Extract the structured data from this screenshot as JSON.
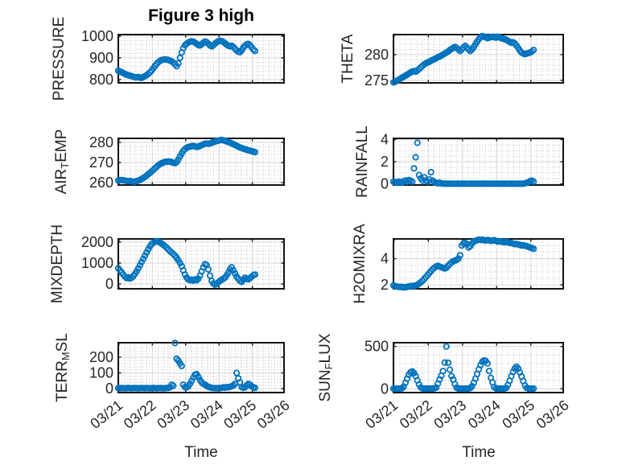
{
  "figure": {
    "title": "Figure 3 high",
    "xlabel": "Time",
    "marker_color": "#0072BD",
    "frame_color": "#141414",
    "grid_color": "#d6d6d6",
    "minor_grid_color": "#bdbdbd",
    "text_color": "#262626",
    "background": "#ffffff"
  },
  "x_axis": {
    "xlim": [
      20.98,
      25.95
    ],
    "x_start": 20.98,
    "x_step": 0.05,
    "tick_days": [
      21,
      22,
      23,
      24,
      25,
      26
    ],
    "tick_labels": [
      "03/21",
      "03/22",
      "03/23",
      "03/24",
      "03/25",
      "03/26"
    ],
    "minor_step_days": 0.1667
  },
  "chart_data": [
    {
      "name": "pressure",
      "type": "scatter",
      "ylabel": "PRESSURE",
      "ylabel_parts": [
        {
          "text": "PRESSURE",
          "sub": false
        }
      ],
      "ylim": [
        785,
        1007
      ],
      "yticks": [
        800,
        900,
        1000
      ],
      "y_minor_step": 20,
      "y": [
        841,
        838,
        834,
        830,
        826,
        822,
        820,
        818,
        816,
        813,
        811,
        810,
        812,
        809,
        808,
        812,
        816,
        820,
        826,
        833,
        841,
        852,
        863,
        872,
        880,
        886,
        890,
        892,
        893,
        892,
        890,
        887,
        884,
        878,
        870,
        862,
        875,
        900,
        925,
        945,
        958,
        965,
        970,
        974,
        976,
        974,
        970,
        964,
        959,
        957,
        962,
        970,
        975,
        972,
        965,
        957,
        953,
        958,
        965,
        972,
        976,
        978,
        977,
        973,
        967,
        961,
        956,
        953,
        956,
        950,
        942,
        934,
        928,
        926,
        935,
        947,
        956,
        962,
        964,
        958,
        948,
        938,
        932
      ]
    },
    {
      "name": "theta",
      "type": "scatter",
      "ylabel": "THETA",
      "ylabel_parts": [
        {
          "text": "THETA",
          "sub": false
        }
      ],
      "ylim": [
        274.5,
        283.9
      ],
      "yticks": [
        275,
        280
      ],
      "y_minor_step": 1,
      "y": [
        274.6,
        274.7,
        274.9,
        275.1,
        275.3,
        275.5,
        275.7,
        275.9,
        276.1,
        276.3,
        276.5,
        276.7,
        276.8,
        276.7,
        276.9,
        277.2,
        277.5,
        277.8,
        278.1,
        278.3,
        278.5,
        278.6,
        278.8,
        279.0,
        279.1,
        279.3,
        279.5,
        279.6,
        279.8,
        280.0,
        280.2,
        280.4,
        280.6,
        280.9,
        281.1,
        281.3,
        281.5,
        281.3,
        281.0,
        280.7,
        281.0,
        281.4,
        281.7,
        281.4,
        281.0,
        280.7,
        281.0,
        281.5,
        282.0,
        282.5,
        283.0,
        283.4,
        283.6,
        283.5,
        283.4,
        283.2,
        283.3,
        283.4,
        283.5,
        283.4,
        283.3,
        283.5,
        283.4,
        283.2,
        283.1,
        283.0,
        282.9,
        282.7,
        282.5,
        282.3,
        282.4,
        282.2,
        281.8,
        281.3,
        280.8,
        280.4,
        280.2,
        280.1,
        280.2,
        280.3,
        280.4,
        280.6,
        280.9
      ]
    },
    {
      "name": "air-temp",
      "type": "scatter",
      "ylabel": "AIR_TEMP",
      "ylabel_parts": [
        {
          "text": "AIR",
          "sub": false
        },
        {
          "text": "T",
          "sub": true
        },
        {
          "text": "EMP",
          "sub": false
        }
      ],
      "ylim": [
        258.8,
        282.0
      ],
      "yticks": [
        260,
        270,
        280
      ],
      "y_minor_step": 2,
      "y": [
        261.0,
        261.2,
        261.3,
        261.2,
        261.0,
        260.8,
        260.7,
        260.9,
        260.6,
        260.4,
        260.5,
        260.8,
        261.0,
        261.3,
        261.8,
        262.3,
        262.9,
        263.5,
        264.2,
        264.9,
        265.6,
        266.3,
        267.1,
        267.9,
        268.6,
        269.2,
        269.7,
        270.0,
        270.3,
        270.4,
        270.5,
        270.4,
        270.2,
        269.9,
        269.7,
        270.2,
        271.5,
        273.0,
        274.5,
        275.8,
        276.7,
        277.3,
        277.7,
        277.9,
        278.1,
        278.2,
        278.0,
        277.8,
        277.9,
        278.2,
        278.6,
        279.0,
        279.3,
        279.4,
        279.3,
        279.5,
        279.8,
        280.1,
        280.4,
        280.7,
        280.9,
        281.1,
        281.2,
        281.0,
        280.8,
        280.5,
        280.2,
        279.9,
        279.5,
        279.1,
        278.7,
        278.3,
        277.9,
        277.5,
        277.2,
        276.9,
        276.6,
        276.3,
        276.1,
        275.9,
        275.7,
        275.4,
        275.1
      ]
    },
    {
      "name": "rainfall",
      "type": "scatter",
      "ylabel": "RAINFALL",
      "ylabel_parts": [
        {
          "text": "RAINFALL",
          "sub": false
        }
      ],
      "ylim": [
        -0.1,
        4.1
      ],
      "yticks": [
        0,
        2,
        4
      ],
      "y_minor_step": 0.5,
      "y": [
        0.2,
        0.15,
        0.1,
        0.2,
        0.15,
        0.1,
        0.25,
        0.3,
        0.2,
        0.35,
        0.3,
        0.2,
        1.4,
        2.4,
        3.7,
        0.8,
        0.5,
        0.3,
        0.6,
        0.3,
        0.2,
        0.4,
        1.05,
        0.3,
        0.15,
        0.1,
        0.05,
        0.1,
        0.05,
        0.03,
        0.02,
        0.02,
        0.02,
        0.02,
        0.02,
        0.02,
        0.02,
        0.02,
        0.02,
        0.02,
        0.02,
        0.02,
        0.02,
        0.02,
        0.02,
        0.02,
        0.02,
        0.02,
        0.02,
        0.02,
        0.02,
        0.02,
        0.02,
        0.02,
        0.02,
        0.02,
        0.02,
        0.02,
        0.02,
        0.02,
        0.02,
        0.02,
        0.02,
        0.02,
        0.02,
        0.02,
        0.02,
        0.02,
        0.02,
        0.02,
        0.02,
        0.02,
        0.02,
        0.02,
        0.02,
        0.02,
        0.02,
        0.05,
        0.1,
        0.15,
        0.25,
        0.3,
        0.2
      ]
    },
    {
      "name": "mixdepth",
      "type": "scatter",
      "ylabel": "MIXDEPTH",
      "ylabel_parts": [
        {
          "text": "MIXDEPTH",
          "sub": false
        }
      ],
      "ylim": [
        -230,
        2150
      ],
      "yticks": [
        0,
        1000,
        2000
      ],
      "y_minor_step": 200,
      "y": [
        750,
        650,
        550,
        450,
        350,
        280,
        320,
        260,
        300,
        380,
        480,
        600,
        750,
        900,
        1050,
        1200,
        1350,
        1500,
        1650,
        1800,
        1900,
        1960,
        2010,
        2040,
        2020,
        1980,
        1930,
        1870,
        1800,
        1730,
        1650,
        1570,
        1500,
        1430,
        1350,
        1250,
        1130,
        1000,
        850,
        650,
        450,
        300,
        220,
        180,
        200,
        160,
        220,
        180,
        250,
        400,
        600,
        800,
        950,
        900,
        700,
        400,
        150,
        20,
        -30,
        0,
        80,
        150,
        200,
        250,
        300,
        420,
        550,
        700,
        800,
        650,
        500,
        350,
        250,
        150,
        100,
        200,
        300,
        250,
        220,
        280,
        350,
        420,
        450
      ]
    },
    {
      "name": "h2omixra",
      "type": "scatter",
      "ylabel": "H2OMIXRA",
      "ylabel_parts": [
        {
          "text": "H2OMIXRA",
          "sub": false
        }
      ],
      "ylim": [
        1.7,
        5.5
      ],
      "yticks": [
        2,
        4
      ],
      "y_minor_step": 0.5,
      "y": [
        1.95,
        1.9,
        1.88,
        1.85,
        1.83,
        1.85,
        1.8,
        1.82,
        1.85,
        1.88,
        1.9,
        1.92,
        1.9,
        1.95,
        2.0,
        2.1,
        2.2,
        2.3,
        2.45,
        2.6,
        2.75,
        2.9,
        3.05,
        3.2,
        3.3,
        3.4,
        3.45,
        3.4,
        3.35,
        3.3,
        3.25,
        3.3,
        3.45,
        3.6,
        3.7,
        3.8,
        3.85,
        3.9,
        4.0,
        4.25,
        5.0,
        5.15,
        5.2,
        5.1,
        4.85,
        4.95,
        5.15,
        5.3,
        5.35,
        5.4,
        5.45,
        5.42,
        5.45,
        5.4,
        5.38,
        5.42,
        5.4,
        5.35,
        5.38,
        5.4,
        5.35,
        5.3,
        5.32,
        5.3,
        5.28,
        5.25,
        5.3,
        5.25,
        5.2,
        5.18,
        5.15,
        5.1,
        5.12,
        5.08,
        5.05,
        5.0,
        5.02,
        4.98,
        4.95,
        4.9,
        4.85,
        4.8,
        4.75
      ]
    },
    {
      "name": "terr-msl",
      "type": "scatter",
      "ylabel": "TERR_MSL",
      "ylabel_parts": [
        {
          "text": "TERR",
          "sub": false
        },
        {
          "text": "M",
          "sub": true
        },
        {
          "text": "SL",
          "sub": false
        }
      ],
      "ylim": [
        -25,
        292
      ],
      "yticks": [
        0,
        100,
        200
      ],
      "y_minor_step": 20,
      "y": [
        3,
        2,
        4,
        3,
        2,
        3,
        4,
        3,
        2,
        3,
        4,
        3,
        2,
        3,
        4,
        3,
        2,
        4,
        3,
        2,
        3,
        4,
        3,
        2,
        3,
        4,
        3,
        2,
        3,
        4,
        5,
        8,
        25,
        18,
        290,
        190,
        178,
        160,
        145,
        25,
        10,
        8,
        15,
        30,
        50,
        70,
        88,
        92,
        75,
        55,
        40,
        30,
        25,
        18,
        12,
        8,
        5,
        4,
        3,
        3,
        3,
        4,
        5,
        8,
        6,
        10,
        8,
        12,
        15,
        20,
        30,
        100,
        65,
        40,
        10,
        5,
        8,
        20,
        30,
        25,
        15,
        8,
        5
      ]
    },
    {
      "name": "sun-flux",
      "type": "scatter",
      "ylabel": "SUN_FLUX",
      "ylabel_parts": [
        {
          "text": "SUN",
          "sub": false
        },
        {
          "text": "F",
          "sub": true
        },
        {
          "text": "LUX",
          "sub": false
        }
      ],
      "ylim": [
        -45,
        545
      ],
      "yticks": [
        0,
        500
      ],
      "y_minor_step": 100,
      "y": [
        2,
        2,
        2,
        2,
        3,
        5,
        25,
        70,
        120,
        165,
        195,
        205,
        185,
        150,
        100,
        50,
        15,
        4,
        2,
        2,
        2,
        2,
        2,
        3,
        5,
        15,
        60,
        110,
        155,
        210,
        310,
        500,
        308,
        225,
        150,
        110,
        55,
        12,
        3,
        2,
        2,
        2,
        2,
        2,
        3,
        8,
        30,
        70,
        120,
        175,
        230,
        280,
        320,
        335,
        330,
        300,
        210,
        130,
        75,
        20,
        4,
        2,
        2,
        2,
        2,
        3,
        10,
        45,
        95,
        150,
        200,
        240,
        260,
        240,
        195,
        145,
        90,
        40,
        10,
        3,
        2,
        2,
        2
      ]
    }
  ]
}
